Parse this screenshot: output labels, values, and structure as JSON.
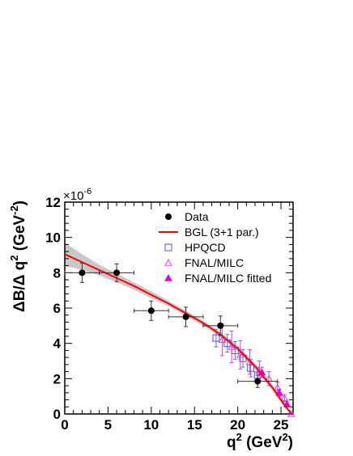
{
  "chart_data": {
    "type": "scatter",
    "xlabel": "q",
    "xlabel_sup": "2",
    "xlabel_unit_pre": " (GeV",
    "xlabel_unit_sup": "2",
    "xlabel_unit_post": ")",
    "ylabel": "ΔB/Δ q",
    "ylabel_sup": "2",
    "ylabel_unit_pre": " (GeV",
    "ylabel_unit_sup": "-2",
    "ylabel_unit_post": ")",
    "y_multiplier": "×10",
    "y_multiplier_exp": "-6",
    "xlim": [
      0,
      26.4
    ],
    "ylim": [
      0,
      12
    ],
    "x_ticks": [
      0,
      5,
      10,
      15,
      20,
      25
    ],
    "y_ticks": [
      0,
      2,
      4,
      6,
      8,
      10,
      12
    ],
    "x_minor_step": 1,
    "y_minor_step": 0.4,
    "legend_position": "top-right",
    "series": [
      {
        "name": "Data",
        "marker": "filled-circle",
        "color": "#000000",
        "points": [
          {
            "x": 2,
            "y": 8.0,
            "xerr": 2,
            "yerr": 0.55
          },
          {
            "x": 6,
            "y": 8.0,
            "xerr": 2,
            "yerr": 0.5
          },
          {
            "x": 10,
            "y": 5.85,
            "xerr": 2,
            "yerr": 0.55
          },
          {
            "x": 14,
            "y": 5.5,
            "xerr": 2,
            "yerr": 0.55
          },
          {
            "x": 18,
            "y": 5.0,
            "xerr": 2,
            "yerr": 0.55
          },
          {
            "x": 22.3,
            "y": 1.85,
            "xerr": 2.3,
            "yerr": 0.35
          }
        ]
      },
      {
        "name": "BGL (3+1 par.)",
        "type": "line",
        "color": "#ff0000",
        "x": [
          0,
          2,
          4,
          6,
          8,
          10,
          12,
          14,
          16,
          18,
          19,
          20,
          21,
          22,
          23,
          24,
          25,
          25.5,
          26.2
        ],
        "y": [
          9.05,
          8.6,
          8.15,
          7.7,
          7.25,
          6.75,
          6.25,
          5.7,
          5.15,
          4.5,
          4.1,
          3.7,
          3.2,
          2.7,
          2.1,
          1.5,
          0.8,
          0.45,
          0.0
        ],
        "band_upper": [
          9.7,
          9.05,
          8.45,
          7.95,
          7.45,
          6.95,
          6.4,
          5.85,
          5.3,
          4.65,
          4.25,
          3.85,
          3.35,
          2.85,
          2.25,
          1.65,
          0.95,
          0.55,
          0.05
        ],
        "band_lower": [
          8.4,
          8.15,
          7.85,
          7.45,
          7.05,
          6.55,
          6.1,
          5.55,
          5.0,
          4.35,
          3.95,
          3.55,
          3.05,
          2.55,
          1.95,
          1.35,
          0.65,
          0.35,
          0.0
        ],
        "band_color": "#c8c8c8"
      },
      {
        "name": "HPQCD",
        "marker": "open-square",
        "color": "#4b4bd9",
        "points": [
          {
            "x": 17.5,
            "y": 4.3,
            "yerr": 0.5
          },
          {
            "x": 18.8,
            "y": 4.0,
            "yerr": 0.5
          },
          {
            "x": 19.7,
            "y": 3.6,
            "yerr": 0.5
          },
          {
            "x": 20.6,
            "y": 3.15,
            "yerr": 0.5
          },
          {
            "x": 21.5,
            "y": 2.6,
            "yerr": 0.5
          },
          {
            "x": 22.3,
            "y": 2.2,
            "yerr": 0.45
          }
        ]
      },
      {
        "name": "FNAL/MILC",
        "marker": "open-triangle",
        "color": "#e043e0",
        "points": [
          {
            "x": 18.2,
            "y": 4.2,
            "yerr": 0.9
          },
          {
            "x": 19.3,
            "y": 3.8,
            "yerr": 0.9
          },
          {
            "x": 20.3,
            "y": 3.35,
            "yerr": 0.8
          },
          {
            "x": 21.4,
            "y": 2.95,
            "yerr": 0.7
          },
          {
            "x": 22.5,
            "y": 2.45,
            "yerr": 0.55
          },
          {
            "x": 23.6,
            "y": 2.0,
            "yerr": 0.4
          },
          {
            "x": 24.6,
            "y": 1.5,
            "yerr": 0.3
          },
          {
            "x": 25.4,
            "y": 0.9,
            "yerr": 0.2
          },
          {
            "x": 26.2,
            "y": 0.0,
            "yerr": 0.05
          }
        ]
      },
      {
        "name": "FNAL/MILC fitted",
        "marker": "filled-triangle",
        "color": "#e000e0",
        "points": [
          {
            "x": 22.8,
            "y": 2.35,
            "yerr": 0.3
          },
          {
            "x": 24.8,
            "y": 1.2,
            "yerr": 0.2
          },
          {
            "x": 25.7,
            "y": 0.55,
            "yerr": 0.15
          }
        ]
      }
    ]
  }
}
